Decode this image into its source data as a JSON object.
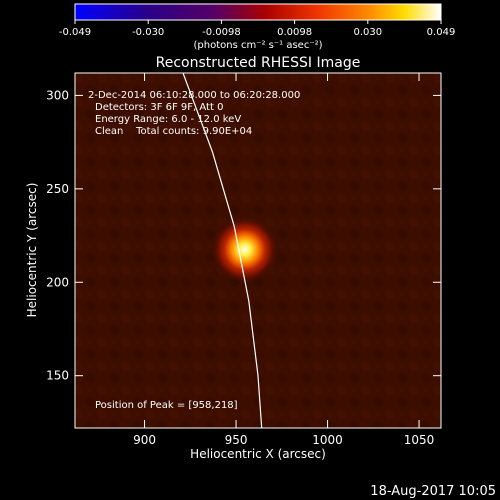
{
  "colorbar": {
    "ticks": [
      "-0.049",
      "-0.030",
      "-0.0098",
      "0.0098",
      "0.030",
      "0.049"
    ],
    "unit_label": "(photons cm⁻² s⁻¹ asec⁻²)"
  },
  "info": {
    "time_range": "2-Dec-2014 06:10:28.000 to 06:20:28.000",
    "detectors": "Detectors: 3F 6F 9F, Att 0",
    "energy": "Energy Range: 6.0 - 12.0 keV",
    "clean": "Clean    Total counts: 9.90E+04",
    "peak": "Position of Peak = [958,218]"
  },
  "timestamp": "18-Aug-2017 10:05",
  "chart_data": {
    "type": "heatmap",
    "title": "Reconstructed RHESSI Image",
    "xlabel": "Heliocentric X (arcsec)",
    "ylabel": "Heliocentric Y (arcsec)",
    "xlim": [
      862,
      1062
    ],
    "ylim": [
      122,
      312
    ],
    "x_ticks": [
      900,
      950,
      1000,
      1050
    ],
    "y_ticks": [
      150,
      200,
      250,
      300
    ],
    "peak": {
      "x": 958,
      "y": 218
    },
    "colormap": "red-temperature",
    "color_range": [
      -0.049,
      0.049
    ],
    "limb_curve": [
      [
        921,
        312
      ],
      [
        937,
        270
      ],
      [
        949,
        230
      ],
      [
        957,
        190
      ],
      [
        962,
        150
      ],
      [
        964,
        122
      ]
    ]
  }
}
